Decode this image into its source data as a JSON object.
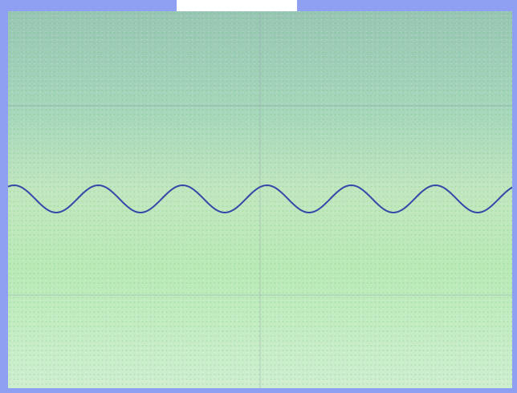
{
  "window": {
    "title": ""
  },
  "viewport": {
    "grid": true,
    "curve_color": "#3448a9",
    "grid_color": "#8fa0aa",
    "border_color": "#8f9ff2"
  },
  "surface_curve": {
    "type": "sinusoid",
    "peaks": 6,
    "troughs": 6
  }
}
